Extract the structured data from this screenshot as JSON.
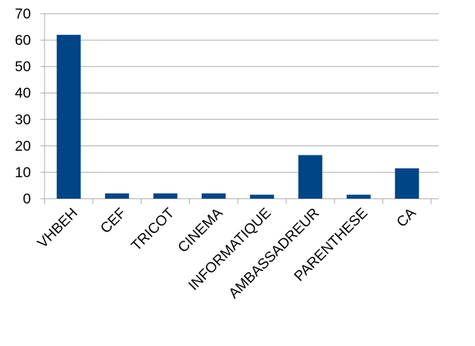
{
  "chart_data": {
    "type": "bar",
    "title": "",
    "xlabel": "",
    "ylabel": "",
    "categories": [
      "VHBEH",
      "CEF",
      "TRICOT",
      "CINEMA",
      "INFORMATIQUE",
      "AMBASSADREUR",
      "PARENTHESE",
      "CA"
    ],
    "values": [
      62,
      2,
      2,
      2,
      1.5,
      16.5,
      1.5,
      11.5
    ],
    "ylim": [
      0,
      70
    ],
    "yticks": [
      "0",
      "10",
      "20",
      "30",
      "40",
      "50",
      "60",
      "70"
    ],
    "grid": true,
    "legend": "none",
    "colors": {
      "bar": "#004586",
      "grid": "#b3b3b3",
      "axis": "#b3b3b3"
    }
  }
}
